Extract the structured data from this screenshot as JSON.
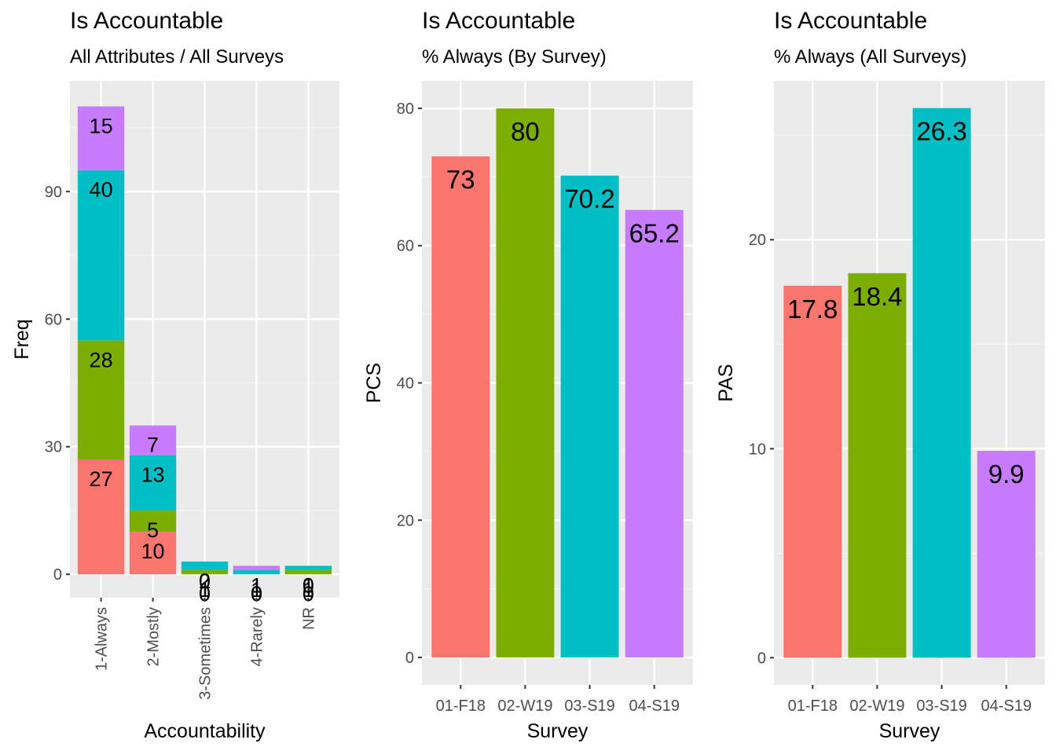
{
  "colors": {
    "panel_bg": "#EBEBEB",
    "grid_major": "#FFFFFF",
    "tick_text": "#4D4D4D",
    "series": [
      "#F8766D",
      "#7CAE00",
      "#00BFC4",
      "#C77CFF"
    ]
  },
  "chart_data": [
    {
      "type": "bar",
      "stacked": true,
      "title": "Is Accountable",
      "subtitle": "All Attributes / All Surveys",
      "xlabel": "Accountability",
      "ylabel": "Freq",
      "categories": [
        "1-Always",
        "2-Mostly",
        "3-Sometimes",
        "4-Rarely",
        "NR"
      ],
      "series": [
        {
          "values": [
            27,
            10,
            0,
            0,
            0
          ]
        },
        {
          "values": [
            28,
            5,
            1,
            0,
            1
          ]
        },
        {
          "values": [
            40,
            13,
            2,
            1,
            1
          ]
        },
        {
          "values": [
            15,
            7,
            0,
            1,
            0
          ]
        }
      ],
      "labels": [
        [
          "27",
          "28",
          "40",
          "15"
        ],
        [
          "10",
          "5",
          "13",
          "7"
        ],
        [
          "0",
          "1",
          "2",
          "0"
        ],
        [
          "0",
          "0",
          "1",
          "1"
        ],
        [
          "0",
          "1",
          "1",
          "0"
        ]
      ],
      "yticks": [
        0,
        30,
        60,
        90
      ],
      "ylim": [
        -5.5,
        116
      ],
      "grid": true,
      "legend": "none",
      "x_label_angle": -90
    },
    {
      "type": "bar",
      "title": "Is Accountable",
      "subtitle": "% Always (By Survey)",
      "xlabel": "Survey",
      "ylabel": "PCS",
      "categories": [
        "01-F18",
        "02-W19",
        "03-S19",
        "04-S19"
      ],
      "values": [
        73,
        80,
        70.2,
        65.2
      ],
      "labels": [
        "73",
        "80",
        "70.2",
        "65.2"
      ],
      "yticks": [
        0,
        20,
        40,
        60,
        80
      ],
      "ylim": [
        -4,
        84
      ],
      "grid": true,
      "legend": "none"
    },
    {
      "type": "bar",
      "title": "Is Accountable",
      "subtitle": "% Always (All Surveys)",
      "xlabel": "Survey",
      "ylabel": "PAS",
      "categories": [
        "01-F18",
        "02-W19",
        "03-S19",
        "04-S19"
      ],
      "values": [
        17.8,
        18.4,
        26.3,
        9.9
      ],
      "labels": [
        "17.8",
        "18.4",
        "26.3",
        "9.9"
      ],
      "yticks": [
        0,
        10,
        20
      ],
      "ylim": [
        -1.3,
        27.6
      ],
      "grid": true,
      "legend": "none"
    }
  ]
}
